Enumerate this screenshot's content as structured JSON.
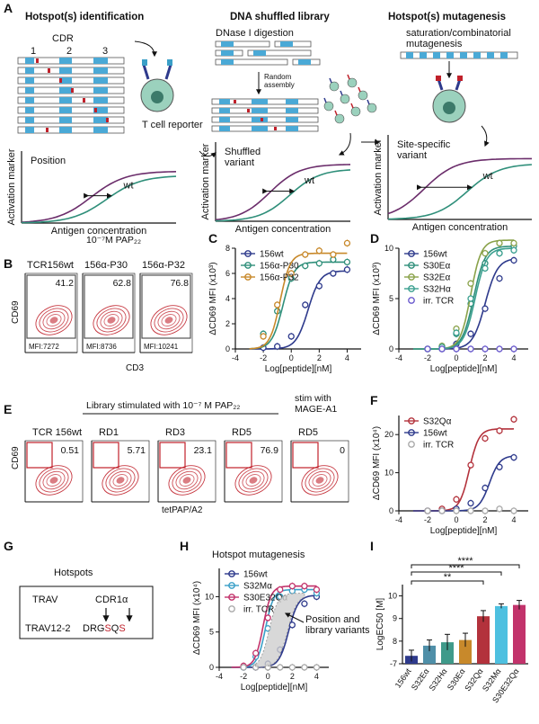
{
  "panel_labels": {
    "a": "A",
    "b": "B",
    "c": "C",
    "d": "D",
    "e": "E",
    "f": "F",
    "g": "G",
    "h": "H",
    "i": "I"
  },
  "panelA": {
    "col1_title": "Hotspot(s) identification",
    "col2_title": "DNA shuffled library",
    "col3_title": "Hotspot(s) mutagenesis",
    "cdr_label": "CDR",
    "cdr_numbers": [
      "1",
      "2",
      "3"
    ],
    "t_cell_reporter": "T cell reporter",
    "dnase": "DNase I digestion",
    "random_assembly": "Random\nassembly",
    "saturation": "saturation/combinatorial\nmutagenesis",
    "position": "Position",
    "wt": "wt",
    "shuffled_variant": "Shuffled\nvariant",
    "site_specific_variant": "Site-specific\nvariant",
    "ylabel": "Activation marker",
    "xlabel": "Antigen concentration"
  },
  "panelB": {
    "header": "10⁻⁷M PAP₂₂",
    "samples": [
      "TCR156wt",
      "156α-P30",
      "156α-P32"
    ],
    "percents": [
      "41.2",
      "62.8",
      "76.8"
    ],
    "mfis": [
      "MFI:7272",
      "MFI:8736",
      "MFI:10241"
    ],
    "ylabel": "CD69",
    "xlabel": "CD3"
  },
  "panelE": {
    "header": "Library stimulated with 10⁻⁷ M PAP₂₂",
    "stim_header": "stim with\nMAGE-A1",
    "samples": [
      "TCR 156wt",
      "RD1",
      "RD3",
      "RD5",
      "RD5"
    ],
    "percents": [
      "0.51",
      "5.71",
      "23.1",
      "76.9",
      "0"
    ],
    "ylabel": "CD69",
    "xlabel": "tetPAP/A2"
  },
  "panelG": {
    "title": "Hotspots",
    "trav": "TRAV",
    "cdr1a": "CDR1α",
    "trav12": "TRAV12-2",
    "seq_prefix": "DRG",
    "seq_s1": "S",
    "seq_q": "Q",
    "seq_s2": "S"
  },
  "panelH": {
    "title": "Hotspot mutagenesis",
    "annotation": "Position and\nlibrary variants"
  },
  "colors": {
    "navy": "#2e3a8c",
    "green": "#2f8f7a",
    "orange": "#c8892b",
    "purple": "#6b2d6b",
    "red": "#b3323c",
    "cyan": "#3a9fc7",
    "grey": "#aaaaaa",
    "flow": "#c0202a"
  },
  "chart_data": [
    {
      "panel": "C",
      "type": "line",
      "xlabel": "Log[peptide][nM]",
      "ylabel": "ΔCD69 MFI (x10³)",
      "xlim": [
        -4,
        5
      ],
      "ylim": [
        0,
        8
      ],
      "xticks": [
        "-4",
        "-2",
        "0",
        "2",
        "4"
      ],
      "yticks": [
        "0",
        "2",
        "4",
        "6",
        "8"
      ],
      "legend": "top-left",
      "series": [
        {
          "name": "156wt",
          "color": "#2e3a8c",
          "marker": "circle",
          "top": 6.2,
          "ec50": 1.2,
          "hill": 1.0,
          "x": [
            -2,
            -1,
            0,
            1,
            2,
            3,
            4
          ],
          "y": [
            0.1,
            0.2,
            1.0,
            3.5,
            5.0,
            6.0,
            6.3
          ]
        },
        {
          "name": "156α-P30",
          "color": "#2f8f7a",
          "marker": "circle",
          "top": 6.9,
          "ec50": -0.6,
          "hill": 1.1,
          "x": [
            -2,
            -1,
            0,
            1,
            2,
            3,
            4
          ],
          "y": [
            1.2,
            3.0,
            5.6,
            6.6,
            6.8,
            7.1,
            6.9
          ]
        },
        {
          "name": "156α-P32",
          "color": "#c8892b",
          "marker": "circle",
          "top": 7.6,
          "ec50": -0.8,
          "hill": 1.2,
          "x": [
            -2,
            -1,
            0,
            1,
            2,
            3,
            4
          ],
          "y": [
            1.0,
            3.5,
            6.0,
            7.5,
            7.8,
            7.5,
            8.4
          ]
        }
      ]
    },
    {
      "panel": "D",
      "type": "line",
      "xlabel": "Log[peptide][nM]",
      "ylabel": "ΔCD69 MFI (x10³)",
      "xlim": [
        -4,
        5
      ],
      "ylim": [
        0,
        10
      ],
      "xticks": [
        "-4",
        "-2",
        "0",
        "2",
        "4"
      ],
      "yticks": [
        "0",
        "5",
        "10"
      ],
      "legend": "top-left",
      "series": [
        {
          "name": "156wt",
          "color": "#2e3a8c",
          "marker": "circle",
          "top": 9.0,
          "ec50": 2.0,
          "hill": 1.0,
          "x": [
            -2,
            -1,
            0,
            1,
            2,
            3,
            4
          ],
          "y": [
            0,
            0,
            0.5,
            1.5,
            4.0,
            7.0,
            8.8
          ]
        },
        {
          "name": "S30Eα",
          "color": "#2f8f7a",
          "marker": "circle",
          "top": 10.2,
          "ec50": 1.2,
          "hill": 1.1,
          "x": [
            -2,
            -1,
            0,
            1,
            2,
            3,
            4
          ],
          "y": [
            0,
            0.2,
            1.5,
            4.5,
            8.5,
            9.5,
            10.2
          ]
        },
        {
          "name": "S32Eα",
          "color": "#8aa24a",
          "marker": "circle",
          "top": 10.8,
          "ec50": 1.0,
          "hill": 1.2,
          "x": [
            -2,
            -1,
            0,
            1,
            2,
            3,
            4
          ],
          "y": [
            0,
            0.3,
            2.0,
            6.5,
            9.5,
            10.5,
            10.5
          ]
        },
        {
          "name": "S32Hα",
          "color": "#3a9f8f",
          "marker": "circle",
          "top": 10.0,
          "ec50": 1.3,
          "hill": 1.1,
          "x": [
            -2,
            -1,
            0,
            1,
            2,
            3,
            4
          ],
          "y": [
            0,
            0.2,
            1.6,
            5.0,
            8.0,
            9.5,
            9.8
          ]
        },
        {
          "name": "irr. TCR",
          "color": "#6a5acd",
          "marker": "open",
          "top": 0,
          "ec50": 0,
          "hill": 1,
          "x": [
            -2,
            -1,
            0,
            1,
            2,
            3,
            4
          ],
          "y": [
            0,
            0,
            0,
            0,
            0,
            0,
            0
          ]
        }
      ]
    },
    {
      "panel": "F",
      "type": "line",
      "xlabel": "Log[peptide][nM]",
      "ylabel": "ΔCD69 MFI (x10⁴)",
      "xlim": [
        -4,
        5
      ],
      "ylim": [
        0,
        25
      ],
      "xticks": [
        "-4",
        "-2",
        "0",
        "2",
        "4"
      ],
      "yticks": [
        "0",
        "10",
        "20"
      ],
      "legend": "top-left",
      "series": [
        {
          "name": "S32Qα",
          "color": "#b3323c",
          "marker": "circle",
          "top": 21.5,
          "ec50": 0.9,
          "hill": 1.3,
          "x": [
            -2,
            -1,
            0,
            1,
            2,
            3,
            4
          ],
          "y": [
            0,
            0.5,
            3.0,
            12.0,
            19.0,
            21.0,
            24.0
          ]
        },
        {
          "name": "156wt",
          "color": "#2e3a8c",
          "marker": "circle",
          "top": 14.5,
          "ec50": 2.3,
          "hill": 1.2,
          "x": [
            -2,
            -1,
            0,
            1,
            2,
            3,
            4
          ],
          "y": [
            0,
            0,
            0.5,
            2.0,
            6.0,
            11.5,
            14.0
          ]
        },
        {
          "name": "irr. TCR",
          "color": "#aaaaaa",
          "marker": "open",
          "top": 0,
          "ec50": 0,
          "hill": 1,
          "x": [
            -2,
            -1,
            0,
            1,
            2,
            3,
            4
          ],
          "y": [
            0,
            0,
            0,
            0,
            0,
            0.5,
            0
          ]
        }
      ]
    },
    {
      "panel": "H",
      "type": "line",
      "xlabel": "Log[peptide][nM]",
      "ylabel": "ΔCD69 MFI (x10⁴)",
      "xlim": [
        -4,
        5
      ],
      "ylim": [
        0,
        14
      ],
      "xticks": [
        "-4",
        "-2",
        "0",
        "2",
        "4"
      ],
      "yticks": [
        "0",
        "5",
        "10"
      ],
      "legend": "top-left",
      "series": [
        {
          "name": "156wt",
          "color": "#2e3a8c",
          "marker": "circle",
          "top": 10.2,
          "ec50": 1.7,
          "hill": 1.1,
          "x": [
            -2,
            -1,
            0,
            1,
            2,
            3,
            4
          ],
          "y": [
            0,
            0,
            0.5,
            2.5,
            6.0,
            9.0,
            10.0
          ]
        },
        {
          "name": "S32Mα",
          "color": "#3a9fc7",
          "marker": "circle",
          "top": 11.0,
          "ec50": -0.2,
          "hill": 1.3,
          "x": [
            -2,
            -1,
            0,
            1,
            2,
            3,
            4
          ],
          "y": [
            0,
            1.5,
            5.5,
            10.0,
            10.8,
            11.0,
            10.5
          ]
        },
        {
          "name": "S30E32Qα",
          "color": "#c2336b",
          "marker": "circle",
          "top": 11.5,
          "ec50": -0.4,
          "hill": 1.3,
          "x": [
            -2,
            -1,
            0,
            1,
            2,
            3,
            4
          ],
          "y": [
            0.2,
            2.0,
            7.0,
            11.0,
            11.5,
            11.5,
            11.0
          ]
        },
        {
          "name": "irr. TCR",
          "color": "#aaaaaa",
          "marker": "open",
          "top": 0,
          "ec50": 0,
          "hill": 1,
          "x": [
            -2,
            -1,
            0,
            1,
            2,
            3,
            4
          ],
          "y": [
            0,
            0,
            0,
            0,
            0,
            0,
            0
          ]
        }
      ]
    },
    {
      "panel": "I",
      "type": "bar",
      "ylabel": "LogEC50 [M]",
      "ylim": [
        -7,
        10.5
      ],
      "yticks": [
        "-7",
        "8",
        "9",
        "10"
      ],
      "categories": [
        "156wt",
        "S32Eα",
        "S32Hα",
        "S30Eα",
        "S32Qα",
        "S32Mα",
        "S30E32Qα"
      ],
      "values": [
        7.35,
        7.8,
        7.95,
        8.05,
        9.1,
        9.55,
        9.6
      ],
      "errors": [
        0.25,
        0.25,
        0.35,
        0.3,
        0.25,
        0.1,
        0.2
      ],
      "colors": [
        "#2e3a8c",
        "#4f8fa8",
        "#3f9a8a",
        "#c8892b",
        "#b3323c",
        "#4ec0e0",
        "#c2336b"
      ],
      "significance": [
        "****",
        "****",
        "**"
      ]
    }
  ]
}
